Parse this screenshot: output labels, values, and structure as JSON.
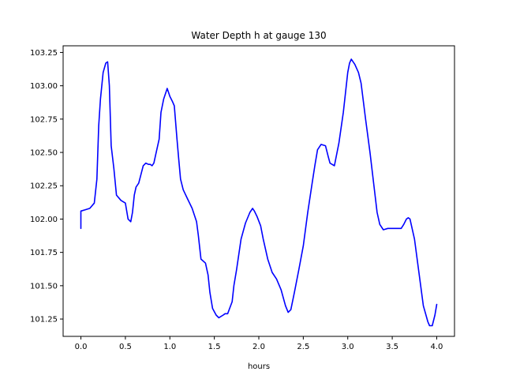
{
  "chart_data": {
    "type": "line",
    "title": "Water Depth h at gauge 130",
    "xlabel": "hours",
    "ylabel": "",
    "xlim": [
      -0.2,
      4.2
    ],
    "ylim": [
      101.12,
      103.3
    ],
    "xticks": [
      0.0,
      0.5,
      1.0,
      1.5,
      2.0,
      2.5,
      3.0,
      3.5,
      4.0
    ],
    "xtick_labels": [
      "0.0",
      "0.5",
      "1.0",
      "1.5",
      "2.0",
      "2.5",
      "3.0",
      "3.5",
      "4.0"
    ],
    "yticks": [
      101.25,
      101.5,
      101.75,
      102.0,
      102.25,
      102.5,
      102.75,
      103.0,
      103.25
    ],
    "ytick_labels": [
      "101.25",
      "101.50",
      "101.75",
      "102.00",
      "102.25",
      "102.50",
      "102.75",
      "103.00",
      "103.25"
    ],
    "grid": false,
    "series": [
      {
        "color": "#0000ff",
        "x": [
          0.0,
          0.0,
          0.05,
          0.1,
          0.15,
          0.18,
          0.2,
          0.22,
          0.25,
          0.28,
          0.3,
          0.32,
          0.34,
          0.37,
          0.4,
          0.45,
          0.5,
          0.53,
          0.56,
          0.58,
          0.6,
          0.62,
          0.65,
          0.7,
          0.73,
          0.76,
          0.78,
          0.8,
          0.82,
          0.84,
          0.88,
          0.9,
          0.93,
          0.97,
          1.0,
          1.03,
          1.05,
          1.08,
          1.1,
          1.12,
          1.15,
          1.2,
          1.25,
          1.3,
          1.32,
          1.35,
          1.4,
          1.43,
          1.45,
          1.48,
          1.52,
          1.55,
          1.6,
          1.62,
          1.65,
          1.7,
          1.72,
          1.75,
          1.8,
          1.85,
          1.9,
          1.93,
          1.95,
          1.98,
          2.02,
          2.05,
          2.1,
          2.15,
          2.2,
          2.25,
          2.3,
          2.33,
          2.36,
          2.4,
          2.45,
          2.5,
          2.55,
          2.6,
          2.63,
          2.66,
          2.7,
          2.75,
          2.78,
          2.8,
          2.85,
          2.9,
          2.95,
          3.0,
          3.02,
          3.04,
          3.08,
          3.12,
          3.15,
          3.2,
          3.25,
          3.3,
          3.33,
          3.36,
          3.4,
          3.45,
          3.5,
          3.55,
          3.6,
          3.63,
          3.66,
          3.68,
          3.7,
          3.75,
          3.8,
          3.85,
          3.9,
          3.92,
          3.95,
          3.98,
          4.0
        ],
        "y": [
          101.93,
          102.06,
          102.07,
          102.08,
          102.12,
          102.3,
          102.7,
          102.9,
          103.1,
          103.17,
          103.18,
          103.0,
          102.55,
          102.38,
          102.18,
          102.14,
          102.12,
          102.0,
          101.98,
          102.05,
          102.18,
          102.24,
          102.27,
          102.4,
          102.42,
          102.41,
          102.41,
          102.4,
          102.42,
          102.48,
          102.6,
          102.8,
          102.9,
          102.98,
          102.92,
          102.88,
          102.85,
          102.6,
          102.45,
          102.3,
          102.22,
          102.15,
          102.08,
          101.98,
          101.88,
          101.7,
          101.67,
          101.58,
          101.45,
          101.33,
          101.28,
          101.26,
          101.28,
          101.29,
          101.29,
          101.38,
          101.5,
          101.62,
          101.85,
          101.97,
          102.05,
          102.08,
          102.06,
          102.02,
          101.95,
          101.85,
          101.7,
          101.6,
          101.55,
          101.47,
          101.35,
          101.3,
          101.32,
          101.45,
          101.62,
          101.8,
          102.05,
          102.27,
          102.4,
          102.52,
          102.56,
          102.55,
          102.47,
          102.42,
          102.4,
          102.57,
          102.8,
          103.1,
          103.17,
          103.2,
          103.16,
          103.1,
          103.02,
          102.75,
          102.5,
          102.22,
          102.05,
          101.96,
          101.92,
          101.93,
          101.93,
          101.93,
          101.93,
          101.96,
          102.0,
          102.01,
          102.0,
          101.85,
          101.6,
          101.35,
          101.23,
          101.2,
          101.2,
          101.28,
          101.36
        ]
      }
    ]
  }
}
